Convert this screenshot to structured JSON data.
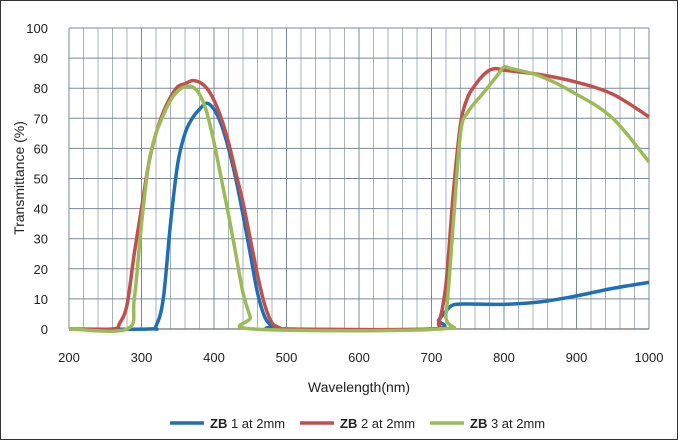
{
  "chart_data": {
    "type": "line",
    "title": "",
    "xlabel": "Wavelength(nm)",
    "ylabel": "Transmittance (%)",
    "xlim": [
      200,
      1000
    ],
    "ylim": [
      0,
      100
    ],
    "xticks": [
      200,
      300,
      400,
      500,
      600,
      700,
      800,
      900,
      1000
    ],
    "yticks": [
      0,
      10,
      20,
      30,
      40,
      50,
      60,
      70,
      80,
      90,
      100
    ],
    "grid": true,
    "legend_position": "bottom",
    "series": [
      {
        "name": "1 at 2mm",
        "prefix": "ZB",
        "color": "#1f6fb4",
        "x": [
          200,
          310,
          320,
          330,
          340,
          350,
          360,
          370,
          380,
          390,
          400,
          410,
          420,
          430,
          440,
          450,
          460,
          470,
          480,
          490,
          700,
          710,
          720,
          730,
          750,
          800,
          850,
          900,
          950,
          1000
        ],
        "y": [
          0,
          0,
          1,
          10,
          35,
          55,
          65,
          70,
          73,
          75,
          73,
          68,
          60,
          50,
          38,
          25,
          12,
          4,
          1,
          0,
          0,
          3,
          6,
          8,
          8.3,
          8.2,
          9,
          11,
          13.5,
          15.5
        ]
      },
      {
        "name": "2 at 2mm",
        "prefix": "ZB",
        "color": "#c0504d",
        "x": [
          200,
          260,
          270,
          280,
          290,
          300,
          310,
          320,
          330,
          340,
          350,
          360,
          370,
          380,
          390,
          400,
          410,
          420,
          430,
          440,
          450,
          460,
          470,
          480,
          490,
          500,
          700,
          710,
          720,
          730,
          740,
          750,
          760,
          770,
          780,
          790,
          800,
          850,
          900,
          950,
          1000
        ],
        "y": [
          0,
          0,
          2,
          8,
          25,
          40,
          55,
          65,
          72,
          77,
          80.5,
          81.5,
          82.5,
          82,
          80,
          76,
          70,
          62,
          52,
          42,
          30,
          18,
          8,
          2,
          0.5,
          0,
          0,
          2,
          15,
          45,
          68,
          77,
          81,
          84,
          86,
          86.5,
          86,
          84.5,
          82,
          78,
          70.5
        ]
      },
      {
        "name": "3 at 2mm",
        "prefix": "ZB",
        "color": "#9bbb59",
        "x": [
          200,
          280,
          290,
          300,
          310,
          320,
          330,
          340,
          350,
          360,
          370,
          380,
          390,
          400,
          410,
          420,
          430,
          440,
          450,
          455,
          710,
          720,
          730,
          740,
          750,
          770,
          790,
          800,
          810,
          850,
          900,
          950,
          1000
        ],
        "y": [
          0,
          0,
          10,
          35,
          55,
          65,
          71,
          76,
          79,
          80.5,
          80.5,
          78,
          72,
          62,
          50,
          38,
          25,
          12,
          4,
          0,
          0,
          5,
          35,
          65,
          72,
          78,
          84,
          87,
          86.5,
          84,
          78,
          70,
          55.5
        ]
      }
    ]
  }
}
